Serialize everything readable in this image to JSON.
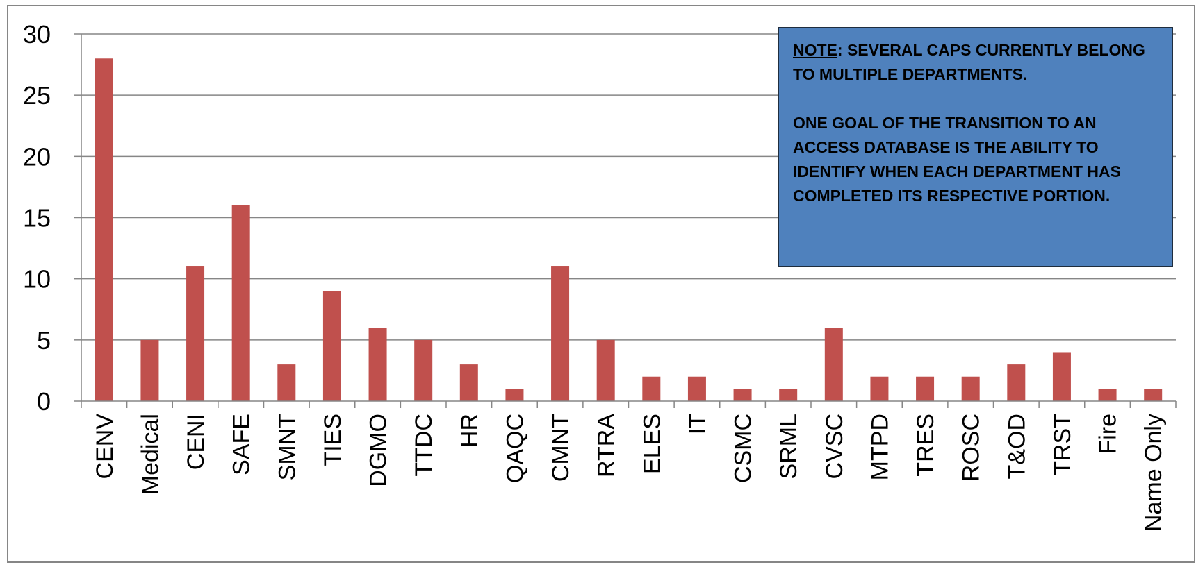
{
  "chart_data": {
    "type": "bar",
    "categories": [
      "CENV",
      "Medical",
      "CENI",
      "SAFE",
      "SMNT",
      "TIES",
      "DGMO",
      "TTDC",
      "HR",
      "QAQC",
      "CMNT",
      "RTRA",
      "ELES",
      "IT",
      "CSMC",
      "SRML",
      "CVSC",
      "MTPD",
      "TRES",
      "ROSC",
      "T&OD",
      "TRST",
      "Fire",
      "Name Only"
    ],
    "values": [
      28,
      5,
      11,
      16,
      3,
      9,
      6,
      5,
      3,
      1,
      11,
      5,
      2,
      2,
      1,
      1,
      6,
      2,
      2,
      2,
      3,
      4,
      1,
      1
    ],
    "ylim": [
      0,
      30
    ],
    "yticks": [
      "0",
      "5",
      "10",
      "15",
      "20",
      "25",
      "30"
    ],
    "grid": true,
    "bar_color": "#c0504d",
    "title": "",
    "xlabel": "",
    "ylabel": ""
  },
  "note": {
    "label": "NOTE",
    "line1": ":  SEVERAL CAPS CURRENTLY BELONG TO MULTIPLE DEPARTMENTS.",
    "line2": "ONE GOAL OF THE TRANSITION TO AN ACCESS DATABASE IS THE ABILITY TO IDENTIFY WHEN EACH DEPARTMENT HAS COMPLETED ITS RESPECTIVE PORTION.",
    "background": "#4f81bd"
  }
}
